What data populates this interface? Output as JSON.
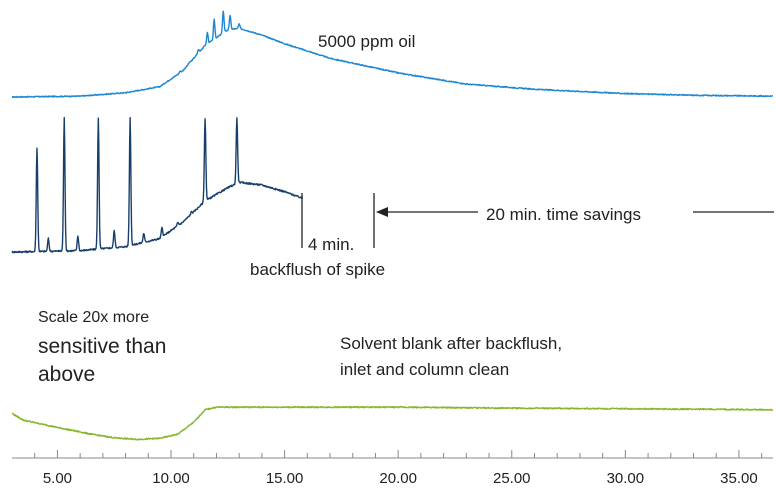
{
  "chart_data": {
    "type": "line",
    "xlim": [
      3.0,
      36.5
    ],
    "x_ticks": [
      5,
      10,
      15,
      20,
      25,
      30,
      35
    ],
    "x_tick_labels": [
      "5.00",
      "10.00",
      "15.00",
      "20.00",
      "25.00",
      "30.00",
      "35.00"
    ],
    "grid": false,
    "series": [
      {
        "id": "oil",
        "color": "#1c87d2",
        "x_range": [
          3.0,
          36.5
        ],
        "baseline": [
          [
            3.0,
            0.0
          ],
          [
            6.0,
            0.01
          ],
          [
            8.0,
            0.05
          ],
          [
            9.5,
            0.12
          ],
          [
            10.5,
            0.3
          ],
          [
            11.5,
            0.6
          ],
          [
            12.5,
            0.78
          ],
          [
            13.0,
            0.8
          ],
          [
            14.0,
            0.72
          ],
          [
            15.0,
            0.62
          ],
          [
            17.0,
            0.45
          ],
          [
            20.0,
            0.28
          ],
          [
            23.0,
            0.15
          ],
          [
            26.0,
            0.09
          ],
          [
            30.0,
            0.04
          ],
          [
            33.0,
            0.02
          ],
          [
            36.5,
            0.01
          ]
        ],
        "peaks": [
          [
            11.2,
            0.55
          ],
          [
            11.6,
            0.75
          ],
          [
            11.9,
            0.9
          ],
          [
            12.3,
            1.0
          ],
          [
            12.6,
            0.95
          ],
          [
            13.0,
            0.85
          ],
          [
            13.4,
            0.7
          ],
          [
            13.8,
            0.6
          ],
          [
            14.2,
            0.55
          ],
          [
            14.6,
            0.45
          ],
          [
            10.8,
            0.4
          ],
          [
            10.4,
            0.3
          ],
          [
            10.0,
            0.2
          ],
          [
            9.5,
            0.12
          ],
          [
            9.0,
            0.08
          ],
          [
            15.4,
            0.28
          ],
          [
            16.0,
            0.2
          ],
          [
            17.0,
            0.14
          ],
          [
            18.5,
            0.1
          ],
          [
            20.0,
            0.06
          ]
        ]
      },
      {
        "id": "spike",
        "color": "#173f6b",
        "x_range": [
          3.0,
          15.8
        ],
        "baseline": [
          [
            3.0,
            0.0
          ],
          [
            6.0,
            0.01
          ],
          [
            8.0,
            0.04
          ],
          [
            9.5,
            0.1
          ],
          [
            10.5,
            0.22
          ],
          [
            11.5,
            0.38
          ],
          [
            12.5,
            0.48
          ],
          [
            13.0,
            0.52
          ],
          [
            14.0,
            0.5
          ],
          [
            15.0,
            0.45
          ],
          [
            15.8,
            0.4
          ]
        ],
        "peaks": [
          [
            4.1,
            0.78
          ],
          [
            5.3,
            1.0
          ],
          [
            6.8,
            1.0
          ],
          [
            8.2,
            1.0
          ],
          [
            11.5,
            1.0
          ],
          [
            12.9,
            1.0
          ],
          [
            4.6,
            0.1
          ],
          [
            5.9,
            0.12
          ],
          [
            7.5,
            0.16
          ],
          [
            8.8,
            0.14
          ],
          [
            9.6,
            0.18
          ],
          [
            10.3,
            0.22
          ],
          [
            10.9,
            0.3
          ],
          [
            12.2,
            0.35
          ],
          [
            13.5,
            0.3
          ],
          [
            14.3,
            0.25
          ],
          [
            15.0,
            0.2
          ]
        ]
      },
      {
        "id": "blank",
        "color": "#84b82b",
        "x_range": [
          3.0,
          36.5
        ],
        "baseline": [
          [
            3.0,
            0.55
          ],
          [
            3.5,
            0.42
          ],
          [
            5.0,
            0.28
          ],
          [
            6.5,
            0.15
          ],
          [
            7.5,
            0.08
          ],
          [
            8.5,
            0.05
          ],
          [
            9.5,
            0.07
          ],
          [
            10.3,
            0.15
          ],
          [
            11.0,
            0.38
          ],
          [
            11.5,
            0.62
          ],
          [
            12.0,
            0.67
          ],
          [
            20.0,
            0.67
          ],
          [
            25.0,
            0.65
          ],
          [
            30.0,
            0.64
          ],
          [
            36.5,
            0.62
          ]
        ],
        "noise": 0.012
      }
    ]
  },
  "annotations": {
    "oil_label": "5000 ppm oil",
    "backflush_time": "4 min.",
    "backflush_label": "backflush of spike",
    "time_savings": "20 min. time savings",
    "scale_line1": "Scale 20x more",
    "scale_line2": "sensitive than",
    "scale_line3": "above",
    "blank_line1": "Solvent blank after backflush,",
    "blank_line2": "inlet and column clean"
  }
}
